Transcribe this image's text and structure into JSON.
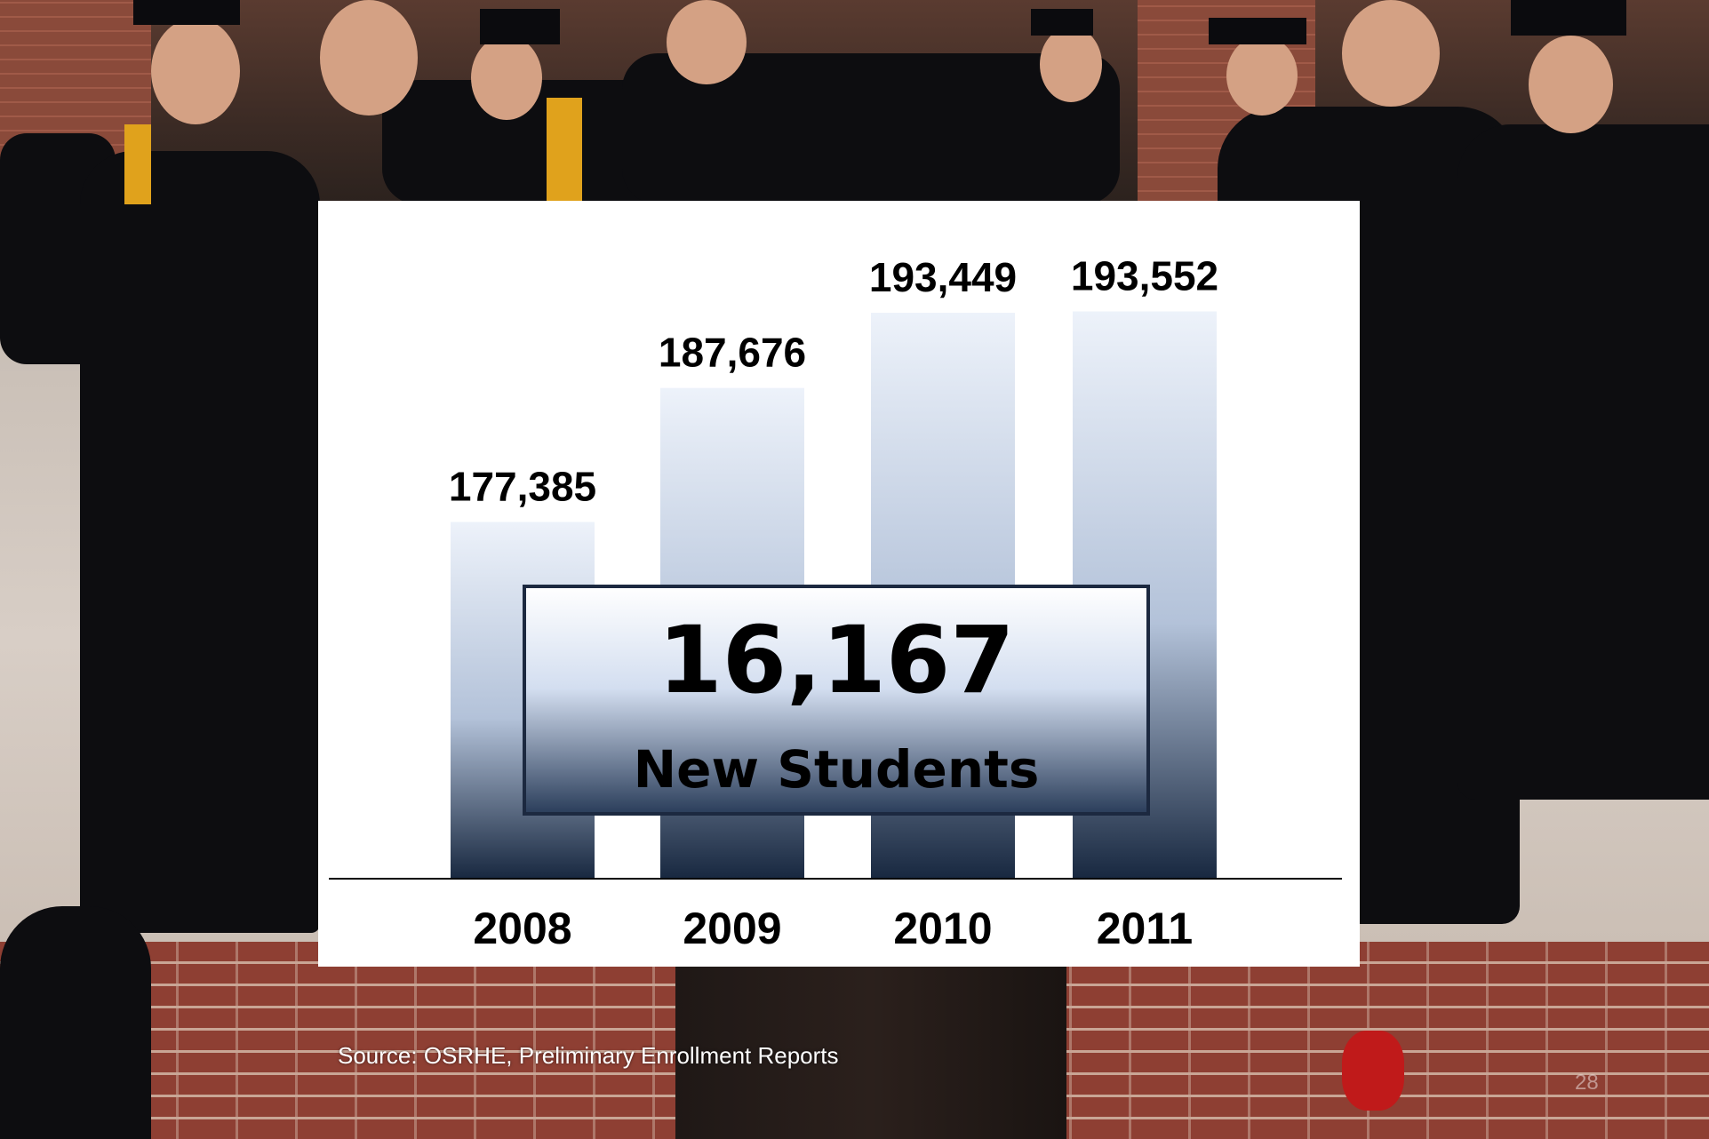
{
  "chart_data": {
    "type": "bar",
    "categories": [
      "2008",
      "2009",
      "2010",
      "2011"
    ],
    "values": [
      177385,
      187676,
      193449,
      193552
    ],
    "value_labels": [
      "177,385",
      "187,676",
      "193,449",
      "193,552"
    ],
    "ylim": [
      150000,
      200000
    ],
    "grid": false,
    "callout": {
      "value": "16,167",
      "label": "New Students"
    }
  },
  "source": "Source: OSRHE, Preliminary Enrollment Reports",
  "page_number": "28",
  "colors": {
    "bar_top": "#edf2fa",
    "bar_mid": "#b3c2d9",
    "bar_bottom": "#182840",
    "callout_top": "#ffffff",
    "callout_bottom": "#2a3d5a",
    "text": "#000000"
  }
}
